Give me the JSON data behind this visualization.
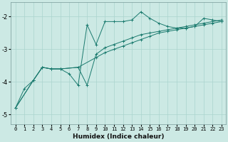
{
  "xlabel": "Humidex (Indice chaleur)",
  "ylabel": "",
  "bg_color": "#cce9e4",
  "grid_color": "#aad4ce",
  "line_color": "#1a7a6e",
  "xlim": [
    -0.5,
    23.5
  ],
  "ylim": [
    -5.3,
    -1.55
  ],
  "yticks": [
    -5,
    -4,
    -3,
    -2
  ],
  "xticks": [
    0,
    1,
    2,
    3,
    4,
    5,
    6,
    7,
    8,
    9,
    10,
    11,
    12,
    13,
    14,
    15,
    16,
    17,
    18,
    19,
    20,
    21,
    22,
    23
  ],
  "series": [
    {
      "x": [
        0,
        1,
        2,
        3,
        4,
        5,
        6,
        7,
        8,
        9,
        10,
        11,
        12,
        13,
        14,
        15,
        16,
        17,
        18,
        19,
        20,
        21,
        22,
        23
      ],
      "y": [
        -4.8,
        -4.2,
        -3.95,
        -3.55,
        -3.6,
        -3.6,
        -3.75,
        -4.1,
        -2.25,
        -2.85,
        -2.15,
        -2.15,
        -2.15,
        -2.1,
        -1.85,
        -2.05,
        -2.2,
        -2.3,
        -2.35,
        -2.35,
        -2.3,
        -2.05,
        -2.1,
        -2.15
      ]
    },
    {
      "x": [
        0,
        2,
        3,
        4,
        5,
        7,
        9,
        10,
        11,
        12,
        13,
        14,
        15,
        16,
        17,
        18,
        19,
        20,
        21,
        22,
        23
      ],
      "y": [
        -4.8,
        -3.95,
        -3.55,
        -3.6,
        -3.6,
        -3.55,
        -3.25,
        -3.1,
        -3.0,
        -2.9,
        -2.8,
        -2.7,
        -2.6,
        -2.5,
        -2.45,
        -2.4,
        -2.35,
        -2.3,
        -2.25,
        -2.2,
        -2.15
      ]
    },
    {
      "x": [
        0,
        2,
        3,
        4,
        5,
        7,
        8,
        9,
        10,
        11,
        12,
        13,
        14,
        15,
        16,
        17,
        18,
        19,
        20,
        21,
        22,
        23
      ],
      "y": [
        -4.8,
        -3.95,
        -3.55,
        -3.6,
        -3.6,
        -3.55,
        -4.1,
        -3.15,
        -2.95,
        -2.85,
        -2.75,
        -2.65,
        -2.55,
        -2.5,
        -2.45,
        -2.4,
        -2.35,
        -2.3,
        -2.25,
        -2.2,
        -2.15,
        -2.1
      ]
    }
  ]
}
